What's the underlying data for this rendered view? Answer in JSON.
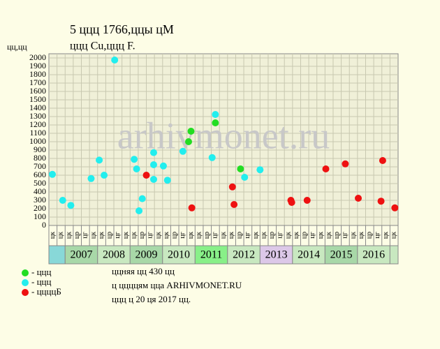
{
  "chart_data": {
    "type": "scatter",
    "title": "5 ццц 1766,ццы цМ",
    "subtitle": "ццц Cu,ццц F.",
    "y_label": "цц,цц",
    "watermark": "arhivmonet.ru",
    "xlim": [
      0,
      43
    ],
    "ylim": [
      0,
      2000
    ],
    "yticks": [
      0,
      100,
      200,
      300,
      400,
      500,
      600,
      700,
      800,
      900,
      1000,
      1100,
      1200,
      1300,
      1400,
      1500,
      1600,
      1700,
      1800,
      1900,
      2000
    ],
    "grid": true,
    "column_labels": [
      "цк",
      "цк",
      "цк",
      "цр",
      "цг",
      "цк",
      "цк",
      "цр",
      "цг",
      "цк",
      "цк",
      "цр",
      "цг",
      "цк",
      "цк",
      "цр",
      "цг",
      "цк",
      "цк",
      "цр",
      "цг",
      "цк",
      "цк",
      "цр",
      "цг",
      "цк",
      "цк",
      "цр",
      "цг",
      "цк",
      "цк",
      "цр",
      "цг",
      "цк",
      "цк",
      "цр",
      "цг",
      "цк",
      "цк",
      "цр",
      "цг",
      "цк",
      "цк"
    ],
    "years": [
      "2007",
      "2008",
      "2009",
      "2010",
      "2011",
      "2012",
      "2013",
      "2014",
      "2015",
      "2016"
    ],
    "year_colors": [
      "#a8d8a8",
      "#c8e8c0",
      "#a8d8a8",
      "#c8e8c0",
      "#88f088",
      "#c8e8c0",
      "#dcc8e8",
      "#c8e8c0",
      "#a8d8a8",
      "#c8e8c0"
    ],
    "first_cell_color": "#88d8d8",
    "series": [
      {
        "name": "- ццц",
        "color": "#22dd22",
        "x": [
          17.2,
          17.5,
          20.5,
          23.6
        ],
        "values": [
          1000,
          1125,
          1225,
          675
        ]
      },
      {
        "name": "- ццц",
        "color": "#22eeee",
        "x": [
          0.43,
          1.7,
          2.7,
          5.2,
          6.2,
          6.8,
          8.1,
          10.5,
          10.8,
          11.1,
          11.5,
          12.9,
          12.9,
          12.9,
          14.1,
          14.6,
          16.5,
          20.1,
          20.5,
          24.1,
          26.0
        ],
        "values": [
          610,
          300,
          240,
          560,
          780,
          600,
          1975,
          790,
          675,
          175,
          320,
          870,
          725,
          550,
          710,
          540,
          885,
          810,
          1325,
          575,
          665
        ]
      },
      {
        "name": "- ццццБ",
        "color": "#ee1111",
        "x": [
          12.0,
          17.6,
          22.6,
          22.8,
          29.8,
          29.9,
          31.8,
          34.1,
          36.5,
          38.1,
          40.9,
          41.1,
          42.6
        ],
        "values": [
          600,
          210,
          460,
          250,
          300,
          275,
          300,
          675,
          735,
          325,
          290,
          775,
          210
        ]
      }
    ],
    "notes": [
      "ццняя цц 430 цц",
      "ц ццццям цца ARHIVMONET.RU",
      "ццц ц 20 ця 2017 цц."
    ]
  }
}
